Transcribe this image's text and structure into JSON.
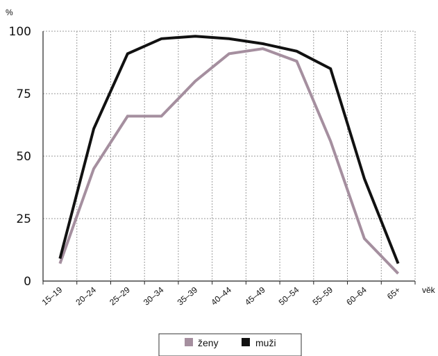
{
  "chart_data": {
    "type": "line",
    "categories": [
      "15–19",
      "20–24",
      "25–29",
      "30–34",
      "35–39",
      "40–44",
      "45–49",
      "50–54",
      "55–59",
      "60–64",
      "65+"
    ],
    "series": [
      {
        "name": "ženy",
        "color": "#a58f9f",
        "values": [
          7,
          45,
          66,
          66,
          80,
          91,
          93,
          88,
          56,
          17,
          3
        ]
      },
      {
        "name": "muži",
        "color": "#111111",
        "values": [
          9,
          61,
          91,
          97,
          98,
          97,
          95,
          92,
          85,
          41,
          7
        ]
      }
    ],
    "yticks": [
      0,
      25,
      50,
      75,
      100
    ],
    "ylim": [
      0,
      100
    ],
    "ylabel": "%",
    "xlabel": "věk",
    "grid": true,
    "legend_position": "bottom-center"
  }
}
